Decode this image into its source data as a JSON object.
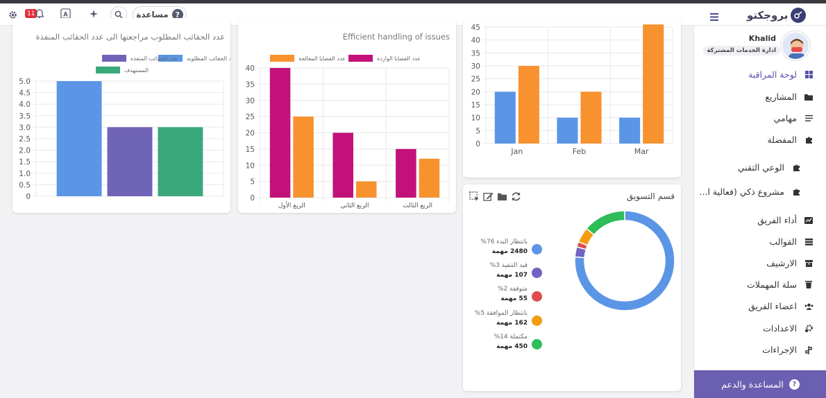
{
  "topbar": {
    "help_label": "مساعدة",
    "help_icon": "question-icon",
    "notifications_count": "11",
    "brand_name": "بروجكتو",
    "icons": [
      "gear-icon",
      "bell-icon",
      "translate-icon",
      "sparkle-icon",
      "search-icon",
      "menu-icon"
    ]
  },
  "cards": {
    "tasks_card": {
      "title": "عدد الحقائب المطلوب مراجعتها الى عدد الحقائب المنفذة"
    },
    "issues_card": {
      "title": "Efficient handling of issues"
    },
    "marketing_card": {
      "title": "قسم التسويق",
      "toolbar_icons": [
        "refresh-icon",
        "folder-icon",
        "edit-icon",
        "select-icon"
      ],
      "legend": [
        {
          "label": "بانتظار البدء 76%",
          "count": "2480 مهمة",
          "color": "#5b95e6"
        },
        {
          "label": "قيد التنفيذ 3%",
          "count": "107 مهمة",
          "color": "#7064c2"
        },
        {
          "label": "متوقفة 2%",
          "count": "55 مهمة",
          "color": "#e04c4c"
        },
        {
          "label": "بانتظار الموافقة 5%",
          "count": "162 مهمة",
          "color": "#f39c12"
        },
        {
          "label": "مكتملة 14%",
          "count": "450 مهمة",
          "color": "#2ebd59"
        }
      ]
    }
  },
  "chart_data": [
    {
      "type": "bar",
      "title": "عدد الحقائب المطلوب مراجعتها الى عدد الحقائب المنفذة",
      "categories": [
        ""
      ],
      "series": [
        {
          "name": "عدد الحقائب المطلوبه",
          "values": [
            5.0
          ],
          "color": "#5b95e6"
        },
        {
          "name": "عدد الحقائب المنفذه",
          "values": [
            3.0
          ],
          "color": "#7064b8"
        },
        {
          "name": "المستهدف",
          "values": [
            3.0
          ],
          "color": "#3aa87a"
        }
      ],
      "yticks": [
        "0",
        "0.5",
        "1.0",
        "1.5",
        "2.0",
        "2.5",
        "3.0",
        "3.5",
        "4.0",
        "4.5",
        "5.0"
      ],
      "ylim": [
        0,
        5.0
      ],
      "legend_position": "top",
      "grid": true
    },
    {
      "type": "bar",
      "title": "Efficient handling of issues",
      "categories": [
        "الربع الأول",
        "الربع الثاني",
        "الربع الثالث"
      ],
      "series": [
        {
          "name": "عدد القضايا الواردة",
          "values": [
            40,
            20,
            15
          ],
          "color": "#c2127a"
        },
        {
          "name": "عدد القضايا المعالجة",
          "values": [
            25,
            5,
            12
          ],
          "color": "#f7922f"
        }
      ],
      "yticks": [
        "0",
        "5",
        "10",
        "15",
        "20",
        "25",
        "30",
        "35",
        "40"
      ],
      "ylim": [
        0,
        40
      ],
      "legend_position": "top",
      "grid": true
    },
    {
      "type": "bar",
      "categories": [
        "Jan",
        "Feb",
        "Mar"
      ],
      "series": [
        {
          "values": [
            20,
            10,
            10
          ],
          "color": "#5b95e6"
        },
        {
          "values": [
            30,
            20,
            46
          ],
          "color": "#f7922f"
        }
      ],
      "yticks": [
        "0",
        "5",
        "10",
        "15",
        "20",
        "25",
        "30",
        "35",
        "40",
        "45"
      ],
      "ylim": [
        0,
        45
      ],
      "grid": true
    },
    {
      "type": "pie",
      "title": "قسم التسويق",
      "slices": [
        {
          "name": "بانتظار البدء",
          "value": 2480,
          "percent": 76,
          "color": "#5b95e6"
        },
        {
          "name": "قيد التنفيذ",
          "value": 107,
          "percent": 3,
          "color": "#7064c2"
        },
        {
          "name": "متوقفة",
          "value": 55,
          "percent": 2,
          "color": "#e04c4c"
        },
        {
          "name": "بانتظار الموافقة",
          "value": 162,
          "percent": 5,
          "color": "#f39c12"
        },
        {
          "name": "مكتملة",
          "value": 450,
          "percent": 14,
          "color": "#2ebd59"
        }
      ]
    }
  ],
  "sidebar": {
    "user_name": "Khalid",
    "user_role": "ادارة الخدمات المشتركة",
    "items": [
      {
        "label": "لوحة المراقبة",
        "icon": "dashboard-icon",
        "active": true
      },
      {
        "label": "المشاريع",
        "icon": "folder-icon"
      },
      {
        "label": "مهامي",
        "icon": "list-icon"
      },
      {
        "label": "المفضلة",
        "icon": "puzzle-icon"
      },
      {
        "label": "الوعي التقني",
        "icon": "puzzle-icon"
      },
      {
        "label": "مشروع ذكي (فعالية ا...",
        "icon": "puzzle-icon"
      },
      {
        "label": "أداء الفريق",
        "icon": "chart-icon"
      },
      {
        "label": "القوالب",
        "icon": "template-icon"
      },
      {
        "label": "الارشيف",
        "icon": "archive-icon"
      },
      {
        "label": "سلة المهملات",
        "icon": "trash-icon"
      },
      {
        "label": "اعضاء الفريق",
        "icon": "team-icon"
      },
      {
        "label": "الاعدادات",
        "icon": "settings-icon"
      },
      {
        "label": "الإجراءات",
        "icon": "procedures-icon"
      }
    ],
    "support_label": "المساعدة والدعم"
  }
}
